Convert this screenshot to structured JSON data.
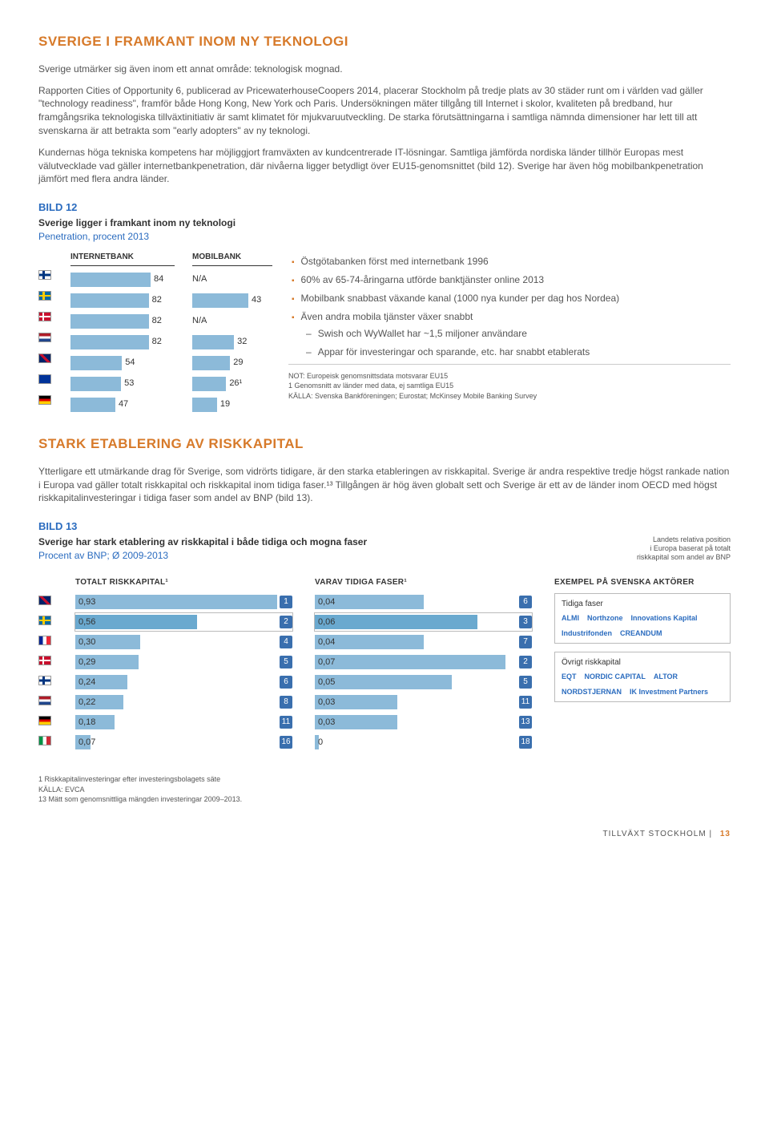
{
  "section1": {
    "heading": "SVERIGE I FRAMKANT INOM NY TEKNOLOGI",
    "p1": "Sverige utmärker sig även inom ett annat område: teknologisk mognad.",
    "p2": "Rapporten Cities of Opportunity 6, publicerad av PricewaterhouseCoopers 2014, placerar Stockholm på tredje plats av 30 städer runt om i världen vad gäller \"technology readiness\", framför både Hong Kong, New York och Paris. Undersökningen mäter tillgång till Internet i skolor, kvaliteten på bredband, hur framgångsrika teknologiska tillväxtinitiativ är samt klimatet för mjukvaruutveckling. De starka förutsättningarna i samtliga nämnda dimensioner har lett till att svenskarna är att betrakta som \"early adopters\" av ny teknologi.",
    "p3": "Kundernas höga tekniska kompetens har möjliggjort framväxten av kundcentrerade IT-lösningar. Samtliga jämförda nordiska länder tillhör Europas mest välutvecklade vad gäller internetbankpenetration, där nivåerna ligger betydligt över EU15-genomsnittet (bild 12). Sverige har även hög mobilbankpenetration jämfört med flera andra länder."
  },
  "bild12": {
    "label": "BILD 12",
    "title": "Sverige ligger i framkant inom ny teknologi",
    "subtitle": "Penetration, procent 2013",
    "col1": "INTERNETBANK",
    "col2": "MOBILBANK",
    "bar_color": "#8cbad9",
    "rows": [
      {
        "flag": "fi",
        "internet": 84,
        "mobil": "N/A"
      },
      {
        "flag": "se",
        "internet": 82,
        "mobil": 43
      },
      {
        "flag": "dk",
        "internet": 82,
        "mobil": "N/A"
      },
      {
        "flag": "nl",
        "internet": 82,
        "mobil": 32
      },
      {
        "flag": "uk",
        "internet": 54,
        "mobil": 29
      },
      {
        "flag": "eu",
        "internet": 53,
        "mobil": "26¹"
      },
      {
        "flag": "de",
        "internet": 47,
        "mobil": 19
      }
    ],
    "bullets": [
      "Östgötabanken först med internetbank 1996",
      "60% av 65-74-åringarna utförde banktjänster online 2013",
      "Mobilbank snabbast växande kanal (1000 nya kunder per dag hos Nordea)",
      "Även andra mobila tjänster växer snabbt"
    ],
    "sub_bullets": [
      "Swish och WyWallet har ~1,5 miljoner användare",
      "Appar för investeringar och sparande, etc. har snabbt etablerats"
    ],
    "note1": "NOT: Europeisk genomsnittsdata motsvarar EU15",
    "note2": "1 Genomsnitt av länder med data, ej samtliga EU15",
    "note3": "KÄLLA: Svenska Bankföreningen; Eurostat; McKinsey Mobile Banking Survey"
  },
  "section2": {
    "heading": "STARK ETABLERING AV RISKKAPITAL",
    "p1": "Ytterligare ett utmärkande drag för Sverige, som vidrörts tidigare, är den starka etableringen av riskkapital. Sverige är andra respektive tredje högst rankade nation i Europa vad gäller totalt riskkapital och riskkapital inom tidiga faser.¹³ Tillgången är hög även globalt sett och Sverige är ett av de länder inom OECD med högst riskkapitalinvesteringar i tidiga faser som andel av BNP (bild 13)."
  },
  "bild13": {
    "label": "BILD 13",
    "title": "Sverige har stark etablering av riskkapital i både tidiga och mogna faser",
    "subtitle": "Procent av BNP; Ø 2009-2013",
    "right_note": "Landets relativa position\ni Europa baserat på totalt\nriskkapital som andel av BNP",
    "col_total": "TOTALT RISKKAPITAL¹",
    "col_early": "VARAV TIDIGA FASER¹",
    "col_actors": "EXEMPEL PÅ SVENSKA AKTÖRER",
    "max_total": 1.0,
    "max_early": 0.08,
    "rows": [
      {
        "flag": "uk",
        "total": "0,93",
        "total_w": 93,
        "rank_t": 1,
        "early": "0,04",
        "early_w": 50,
        "rank_e": 6
      },
      {
        "flag": "se",
        "total": "0,56",
        "total_w": 56,
        "rank_t": 2,
        "early": "0,06",
        "early_w": 75,
        "rank_e": 3,
        "hl": true
      },
      {
        "flag": "fr",
        "total": "0,30",
        "total_w": 30,
        "rank_t": 4,
        "early": "0,04",
        "early_w": 50,
        "rank_e": 7
      },
      {
        "flag": "dk",
        "total": "0,29",
        "total_w": 29,
        "rank_t": 5,
        "early": "0,07",
        "early_w": 88,
        "rank_e": 2
      },
      {
        "flag": "fi",
        "total": "0,24",
        "total_w": 24,
        "rank_t": 6,
        "early": "0,05",
        "early_w": 63,
        "rank_e": 5
      },
      {
        "flag": "nl",
        "total": "0,22",
        "total_w": 22,
        "rank_t": 8,
        "early": "0,03",
        "early_w": 38,
        "rank_e": 11
      },
      {
        "flag": "de",
        "total": "0,18",
        "total_w": 18,
        "rank_t": 11,
        "early": "0,03",
        "early_w": 38,
        "rank_e": 13
      },
      {
        "flag": "it",
        "total": "0,07",
        "total_w": 7,
        "rank_t": 16,
        "early": "0",
        "early_w": 2,
        "rank_e": 18
      }
    ],
    "actors_early_label": "Tidiga faser",
    "actors_early": [
      "ALMI",
      "Northzone",
      "Innovations Kapital",
      "Industrifonden",
      "CREANDUM"
    ],
    "actors_other_label": "Övrigt riskkapital",
    "actors_other": [
      "EQT",
      "NORDIC CAPITAL",
      "ALTOR",
      "NORDSTJERNAN",
      "IK Investment Partners"
    ]
  },
  "footnotes": {
    "f1": "1 Riskkapitalinvesteringar efter investeringsbolagets säte",
    "f2": "KÄLLA: EVCA",
    "f3": "13  Mätt som genomsnittliga mängden investeringar 2009–2013."
  },
  "footer": {
    "title": "TILLVÄXT STOCKHOLM",
    "sep": "|",
    "page": "13"
  }
}
